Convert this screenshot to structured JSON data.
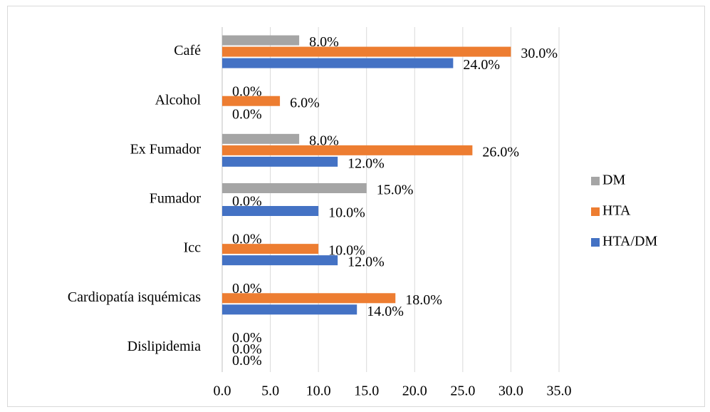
{
  "chart_data": {
    "type": "barh",
    "categories": [
      "Café",
      "Alcohol",
      "Ex Fumador",
      "Fumador",
      "Icc",
      "Cardiopatía isquémicas",
      "Dislipidemia"
    ],
    "series": [
      {
        "name": "DM",
        "color": "#a5a5a5",
        "values": [
          8,
          0,
          8,
          15,
          0,
          0,
          0
        ],
        "value_labels": [
          "8.0%",
          "0.0%",
          "8.0%",
          "15.0%",
          "0.0%",
          "0.0%",
          "0.0%"
        ]
      },
      {
        "name": "HTA",
        "color": "#ed7d31",
        "values": [
          30,
          6,
          26,
          0,
          10,
          18,
          0
        ],
        "value_labels": [
          "30.0%",
          "6.0%",
          "26.0%",
          "0.0%",
          "10.0%",
          "18.0%",
          "0.0%"
        ]
      },
      {
        "name": "HTA/DM",
        "color": "#4472c4",
        "values": [
          24,
          0,
          12,
          10,
          12,
          14,
          0
        ],
        "value_labels": [
          "24.0%",
          "0.0%",
          "12.0%",
          "10.0%",
          "12.0%",
          "14.0%",
          "0.0%"
        ]
      }
    ],
    "xlim": [
      0,
      35
    ],
    "xticks": [
      {
        "value": 0,
        "label": "0.0"
      },
      {
        "value": 5,
        "label": "5.0"
      },
      {
        "value": 10,
        "label": "10.0"
      },
      {
        "value": 15,
        "label": "15.0"
      },
      {
        "value": 20,
        "label": "20.0"
      },
      {
        "value": 25,
        "label": "25.0"
      },
      {
        "value": 30,
        "label": "30.0"
      },
      {
        "value": 35,
        "label": "35.0"
      }
    ],
    "grid": true,
    "legend": "right"
  }
}
